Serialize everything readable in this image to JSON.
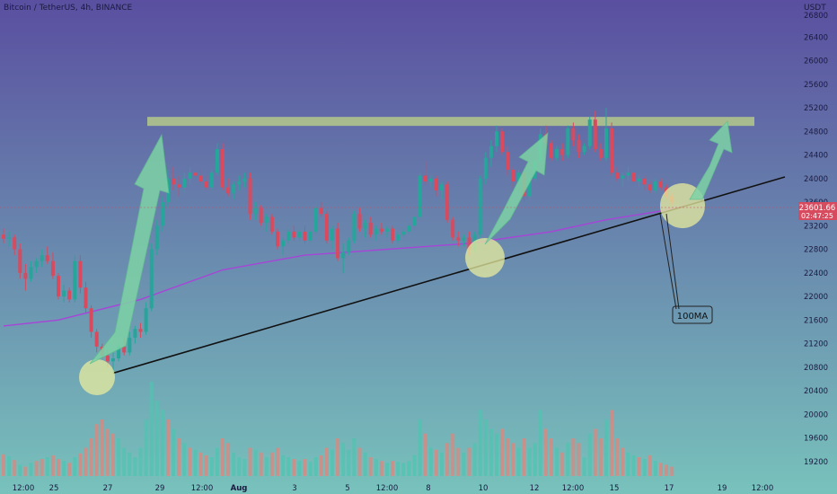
{
  "header": {
    "title": "Bitcoin / TetherUS, 4h, BINANCE",
    "currency": "USDT"
  },
  "price_label": {
    "price": "23601.66",
    "countdown": "02:47:25"
  },
  "annotation": {
    "ma_label": "100MA"
  },
  "colors": {
    "bg_top": "#5a4fa0",
    "bg_bottom": "#78c2bc",
    "up": "#26a69a",
    "down": "#d84a5e",
    "vol_up": "#4fc4b0",
    "vol_down": "#e0857c",
    "ma": "#a844d8",
    "trendline": "#111111",
    "resistance": "#b5c98a",
    "circle": "#e8ec9e",
    "arrow": "#7ed3a6",
    "price_tag": "#d84a5e"
  },
  "chart_data": {
    "type": "candlestick",
    "symbol": "Bitcoin / TetherUS",
    "interval": "4h",
    "exchange": "BINANCE",
    "y_axis": {
      "range": [
        19000,
        26800
      ],
      "ticks": [
        26400,
        26000,
        25600,
        25200,
        24800,
        24400,
        24000,
        23600,
        23200,
        22800,
        22400,
        22000,
        21600,
        21200,
        20800,
        20400,
        20000,
        19600,
        19200
      ],
      "top_label": "26800"
    },
    "x_axis": {
      "ticks": [
        "12:00",
        "25",
        "27",
        "29",
        "12:00",
        "Aug",
        "3",
        "5",
        "12:00",
        "8",
        "10",
        "12",
        "12:00",
        "15",
        "17",
        "19",
        "12:00"
      ]
    },
    "candles": [
      [
        23050,
        23150,
        22900,
        22980
      ],
      [
        22980,
        23100,
        22850,
        23000
      ],
      [
        23000,
        23050,
        22700,
        22800
      ],
      [
        22800,
        22900,
        22300,
        22400
      ],
      [
        22400,
        22550,
        22100,
        22300
      ],
      [
        22300,
        22600,
        22250,
        22500
      ],
      [
        22500,
        22650,
        22400,
        22600
      ],
      [
        22600,
        22800,
        22500,
        22700
      ],
      [
        22700,
        22850,
        22550,
        22600
      ],
      [
        22600,
        22750,
        22300,
        22350
      ],
      [
        22350,
        22400,
        21950,
        22000
      ],
      [
        22000,
        22200,
        21900,
        22100
      ],
      [
        22100,
        22150,
        21900,
        21950
      ],
      [
        21950,
        22700,
        21900,
        22600
      ],
      [
        22600,
        22700,
        22050,
        22150
      ],
      [
        22150,
        22250,
        21700,
        21800
      ],
      [
        21800,
        21850,
        21300,
        21400
      ],
      [
        21400,
        21450,
        21050,
        21150
      ],
      [
        21150,
        21200,
        20950,
        21000
      ],
      [
        21000,
        21100,
        20800,
        20900
      ],
      [
        20900,
        21050,
        20700,
        20950
      ],
      [
        20950,
        21200,
        20900,
        21150
      ],
      [
        21150,
        21300,
        21000,
        21050
      ],
      [
        21050,
        21400,
        21000,
        21300
      ],
      [
        21300,
        21500,
        21200,
        21450
      ],
      [
        21450,
        21550,
        21300,
        21400
      ],
      [
        21400,
        21900,
        21350,
        21800
      ],
      [
        21800,
        22900,
        21750,
        22800
      ],
      [
        22800,
        23300,
        22700,
        23200
      ],
      [
        23200,
        23700,
        23100,
        23600
      ],
      [
        23600,
        24150,
        23500,
        24000
      ],
      [
        24000,
        24200,
        23800,
        23900
      ],
      [
        23900,
        24050,
        23700,
        23850
      ],
      [
        23850,
        24100,
        23750,
        24000
      ],
      [
        24000,
        24200,
        23900,
        24100
      ],
      [
        24100,
        24300,
        23950,
        24050
      ],
      [
        24050,
        24150,
        23900,
        23950
      ],
      [
        23950,
        24050,
        23800,
        23850
      ],
      [
        23850,
        24150,
        23800,
        24100
      ],
      [
        24100,
        24600,
        24050,
        24500
      ],
      [
        24500,
        24600,
        23800,
        23850
      ],
      [
        23850,
        24000,
        23700,
        23750
      ],
      [
        23750,
        23950,
        23650,
        23900
      ],
      [
        23900,
        24050,
        23800,
        23950
      ],
      [
        23950,
        24100,
        23850,
        24000
      ],
      [
        24000,
        24100,
        23300,
        23400
      ],
      [
        23400,
        23600,
        23300,
        23500
      ],
      [
        23500,
        23550,
        23200,
        23250
      ],
      [
        23250,
        23400,
        23100,
        23350
      ],
      [
        23350,
        23400,
        23050,
        23100
      ],
      [
        23100,
        23150,
        22800,
        22850
      ],
      [
        22850,
        23000,
        22700,
        22950
      ],
      [
        22950,
        23150,
        22900,
        23100
      ],
      [
        23100,
        23200,
        22950,
        23000
      ],
      [
        23000,
        23150,
        22950,
        23100
      ],
      [
        23100,
        23200,
        22900,
        22950
      ],
      [
        22950,
        23150,
        22900,
        23100
      ],
      [
        23100,
        23550,
        23050,
        23500
      ],
      [
        23500,
        23600,
        23350,
        23400
      ],
      [
        23400,
        23450,
        22900,
        22950
      ],
      [
        22950,
        23200,
        22800,
        23150
      ],
      [
        23150,
        23250,
        22600,
        22650
      ],
      [
        22650,
        22900,
        22400,
        22750
      ],
      [
        22750,
        23000,
        22700,
        22950
      ],
      [
        22950,
        23450,
        22900,
        23400
      ],
      [
        23400,
        23500,
        23100,
        23150
      ],
      [
        23150,
        23300,
        23000,
        23250
      ],
      [
        23250,
        23350,
        23000,
        23050
      ],
      [
        23050,
        23200,
        22950,
        23150
      ],
      [
        23150,
        23250,
        23050,
        23100
      ],
      [
        23100,
        23200,
        23000,
        23150
      ],
      [
        23150,
        23200,
        22900,
        22950
      ],
      [
        22950,
        23100,
        22900,
        23050
      ],
      [
        23050,
        23150,
        23000,
        23100
      ],
      [
        23100,
        23250,
        23050,
        23200
      ],
      [
        23200,
        23400,
        23150,
        23350
      ],
      [
        23350,
        24100,
        23300,
        24050
      ],
      [
        24050,
        24300,
        23900,
        23950
      ],
      [
        23950,
        24050,
        23850,
        24000
      ],
      [
        24000,
        24050,
        23700,
        23800
      ],
      [
        23800,
        23950,
        23650,
        23900
      ],
      [
        23900,
        23950,
        23250,
        23300
      ],
      [
        23300,
        23350,
        22950,
        23000
      ],
      [
        23000,
        23100,
        22850,
        22950
      ],
      [
        22950,
        23050,
        22850,
        23000
      ],
      [
        23000,
        23100,
        22700,
        22800
      ],
      [
        22800,
        23100,
        22750,
        23050
      ],
      [
        23050,
        24050,
        23000,
        24000
      ],
      [
        24000,
        24450,
        23900,
        24350
      ],
      [
        24350,
        24650,
        24200,
        24550
      ],
      [
        24550,
        24900,
        24450,
        24800
      ],
      [
        24800,
        24850,
        24400,
        24450
      ],
      [
        24450,
        24550,
        24050,
        24150
      ],
      [
        24150,
        24200,
        23850,
        23950
      ],
      [
        23950,
        24150,
        23900,
        24100
      ],
      [
        24100,
        24200,
        23600,
        23700
      ],
      [
        23700,
        24050,
        23650,
        24000
      ],
      [
        24000,
        24350,
        23950,
        24300
      ],
      [
        24300,
        24850,
        24250,
        24750
      ],
      [
        24750,
        24900,
        24500,
        24600
      ],
      [
        24600,
        24650,
        24300,
        24350
      ],
      [
        24350,
        24550,
        24300,
        24500
      ],
      [
        24500,
        24600,
        24300,
        24400
      ],
      [
        24400,
        24900,
        24350,
        24850
      ],
      [
        24850,
        24950,
        24550,
        24650
      ],
      [
        24650,
        24750,
        24350,
        24450
      ],
      [
        24450,
        24600,
        24400,
        24550
      ],
      [
        24550,
        25050,
        24500,
        25000
      ],
      [
        25000,
        25150,
        24450,
        24500
      ],
      [
        24500,
        24600,
        24300,
        24350
      ],
      [
        24350,
        25200,
        24300,
        24850
      ],
      [
        24850,
        24950,
        24050,
        24100
      ],
      [
        24100,
        24200,
        23950,
        24000
      ],
      [
        24000,
        24100,
        23850,
        24050
      ],
      [
        24050,
        24200,
        23950,
        24100
      ],
      [
        24100,
        24150,
        23900,
        23950
      ],
      [
        23950,
        24050,
        23850,
        24000
      ],
      [
        24000,
        24050,
        23800,
        23900
      ],
      [
        23900,
        23950,
        23750,
        23800
      ],
      [
        23800,
        24000,
        23750,
        23950
      ],
      [
        23950,
        24000,
        23800,
        23850
      ],
      [
        23850,
        23900,
        23650,
        23700
      ],
      [
        23700,
        23750,
        23550,
        23600
      ]
    ],
    "volume": [
      [
        23,
        0
      ],
      [
        21,
        1
      ],
      [
        17,
        0
      ],
      [
        12,
        1
      ],
      [
        10,
        0
      ],
      [
        14,
        1
      ],
      [
        16,
        0
      ],
      [
        18,
        0
      ],
      [
        20,
        1
      ],
      [
        22,
        0
      ],
      [
        18,
        0
      ],
      [
        16,
        1
      ],
      [
        14,
        0
      ],
      [
        20,
        1
      ],
      [
        24,
        0
      ],
      [
        30,
        0
      ],
      [
        40,
        0
      ],
      [
        55,
        0
      ],
      [
        60,
        0
      ],
      [
        50,
        0
      ],
      [
        45,
        0
      ],
      [
        40,
        1
      ],
      [
        30,
        1
      ],
      [
        25,
        1
      ],
      [
        20,
        1
      ],
      [
        30,
        1
      ],
      [
        60,
        1
      ],
      [
        100,
        1
      ],
      [
        80,
        1
      ],
      [
        70,
        1
      ],
      [
        60,
        0
      ],
      [
        50,
        1
      ],
      [
        40,
        0
      ],
      [
        35,
        1
      ],
      [
        30,
        0
      ],
      [
        28,
        1
      ],
      [
        25,
        0
      ],
      [
        22,
        0
      ],
      [
        20,
        1
      ],
      [
        30,
        1
      ],
      [
        40,
        0
      ],
      [
        35,
        0
      ],
      [
        25,
        1
      ],
      [
        20,
        1
      ],
      [
        18,
        1
      ],
      [
        30,
        0
      ],
      [
        28,
        1
      ],
      [
        25,
        0
      ],
      [
        20,
        1
      ],
      [
        25,
        0
      ],
      [
        30,
        0
      ],
      [
        22,
        1
      ],
      [
        20,
        1
      ],
      [
        18,
        0
      ],
      [
        16,
        1
      ],
      [
        18,
        0
      ],
      [
        15,
        1
      ],
      [
        20,
        1
      ],
      [
        22,
        0
      ],
      [
        30,
        0
      ],
      [
        28,
        1
      ],
      [
        40,
        0
      ],
      [
        35,
        1
      ],
      [
        28,
        1
      ],
      [
        40,
        1
      ],
      [
        30,
        0
      ],
      [
        25,
        1
      ],
      [
        20,
        0
      ],
      [
        18,
        1
      ],
      [
        16,
        0
      ],
      [
        14,
        1
      ],
      [
        16,
        0
      ],
      [
        15,
        1
      ],
      [
        14,
        1
      ],
      [
        16,
        1
      ],
      [
        22,
        1
      ],
      [
        60,
        1
      ],
      [
        45,
        0
      ],
      [
        30,
        1
      ],
      [
        28,
        0
      ],
      [
        25,
        1
      ],
      [
        35,
        0
      ],
      [
        45,
        0
      ],
      [
        30,
        0
      ],
      [
        25,
        1
      ],
      [
        30,
        0
      ],
      [
        35,
        1
      ],
      [
        70,
        1
      ],
      [
        60,
        1
      ],
      [
        50,
        1
      ],
      [
        45,
        1
      ],
      [
        50,
        0
      ],
      [
        40,
        0
      ],
      [
        35,
        0
      ],
      [
        30,
        1
      ],
      [
        40,
        0
      ],
      [
        30,
        1
      ],
      [
        35,
        1
      ],
      [
        70,
        1
      ],
      [
        50,
        0
      ],
      [
        40,
        0
      ],
      [
        30,
        1
      ],
      [
        25,
        0
      ],
      [
        35,
        1
      ],
      [
        40,
        0
      ],
      [
        35,
        0
      ],
      [
        20,
        1
      ],
      [
        45,
        1
      ],
      [
        50,
        0
      ],
      [
        40,
        0
      ],
      [
        60,
        1
      ],
      [
        70,
        0
      ],
      [
        40,
        0
      ],
      [
        30,
        0
      ],
      [
        25,
        1
      ],
      [
        22,
        1
      ],
      [
        20,
        0
      ],
      [
        18,
        1
      ],
      [
        22,
        0
      ],
      [
        16,
        1
      ],
      [
        14,
        0
      ],
      [
        12,
        0
      ],
      [
        10,
        0
      ]
    ],
    "ma100": [
      [
        0,
        21500
      ],
      [
        10,
        21600
      ],
      [
        25,
        21950
      ],
      [
        40,
        22450
      ],
      [
        55,
        22700
      ],
      [
        70,
        22800
      ],
      [
        85,
        22900
      ],
      [
        100,
        23100
      ],
      [
        110,
        23300
      ],
      [
        120,
        23450
      ],
      [
        125,
        23550
      ]
    ],
    "trendline": [
      [
        20,
        20700
      ],
      [
        126,
        23500
      ],
      [
        145,
        24000
      ]
    ],
    "resistance_zone": [
      24900,
      25000
    ]
  }
}
